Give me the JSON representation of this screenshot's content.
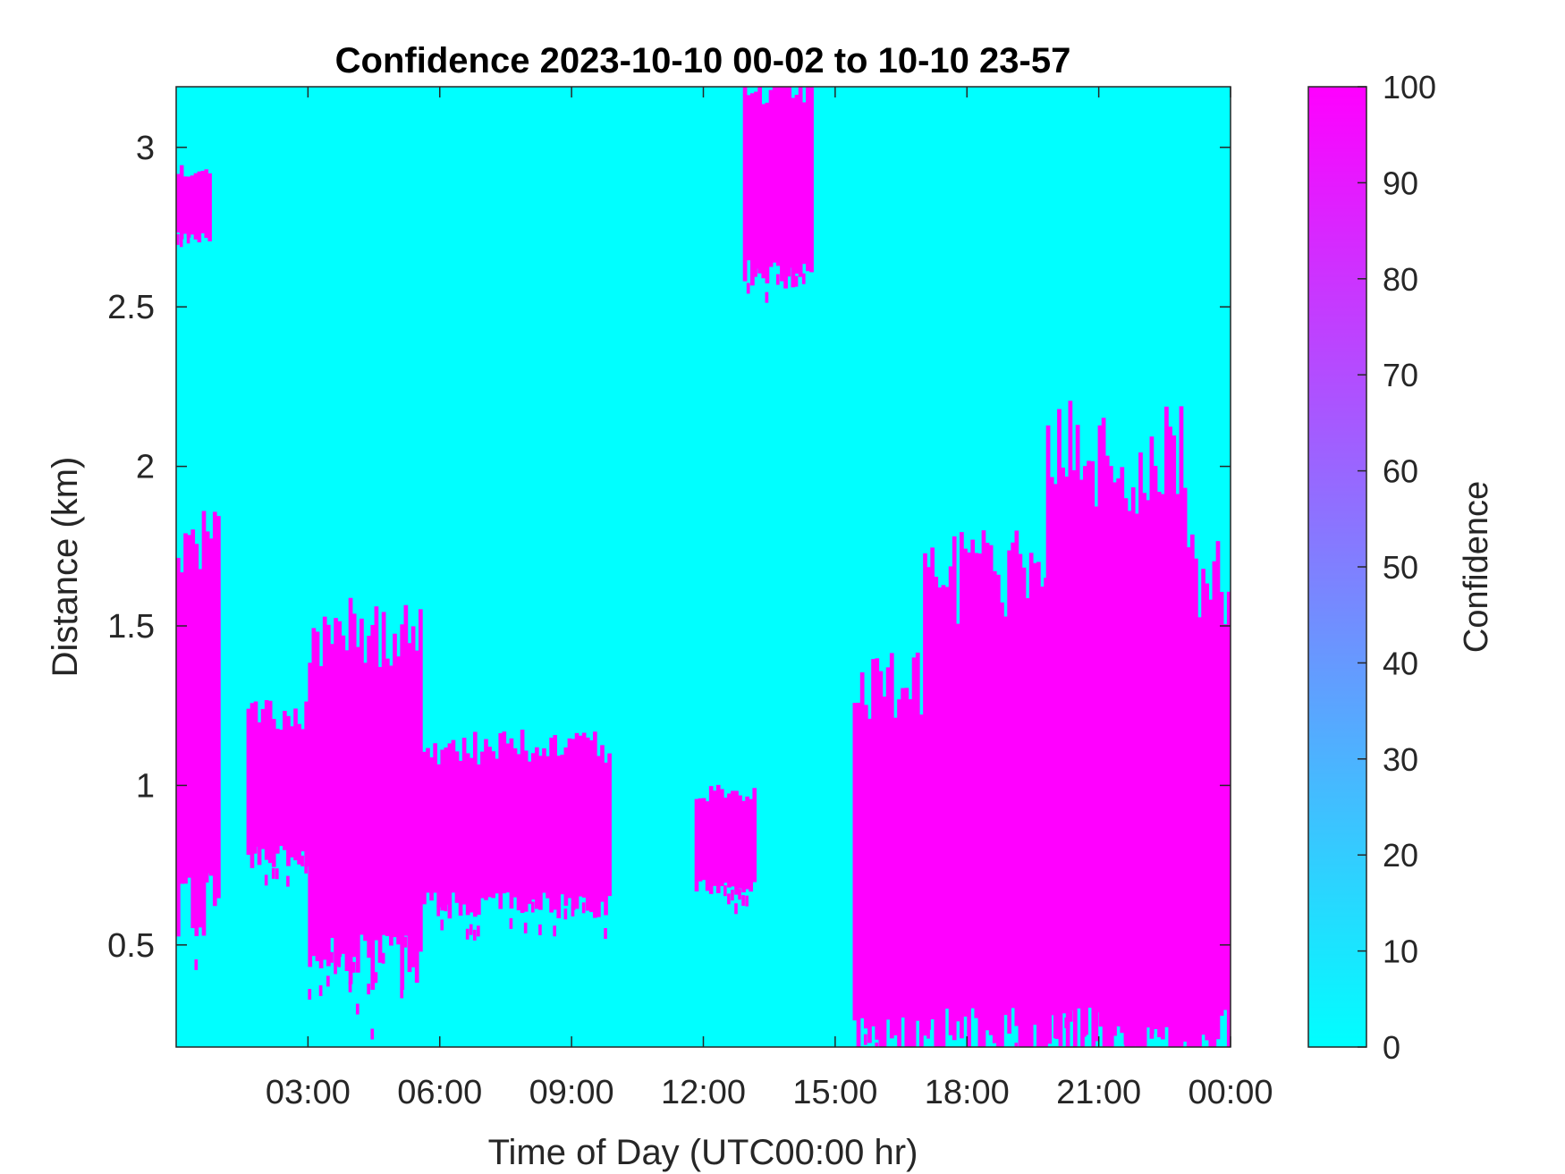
{
  "chart_data": {
    "type": "heatmap",
    "title": "Confidence 2023-10-10 00-02 to 10-10 23-57",
    "xlabel": "Time of Day (UTC00:00 hr)",
    "ylabel": "Distance (km)",
    "xlim_hours": [
      0.0,
      24.0
    ],
    "ylim": [
      0.18,
      3.19
    ],
    "x_ticks": [
      {
        "value": 3,
        "label": "03:00"
      },
      {
        "value": 6,
        "label": "06:00"
      },
      {
        "value": 9,
        "label": "09:00"
      },
      {
        "value": 12,
        "label": "12:00"
      },
      {
        "value": 15,
        "label": "15:00"
      },
      {
        "value": 18,
        "label": "18:00"
      },
      {
        "value": 21,
        "label": "21:00"
      },
      {
        "value": 24,
        "label": "00:00"
      }
    ],
    "y_ticks": [
      {
        "value": 0.5,
        "label": "0.5"
      },
      {
        "value": 1.0,
        "label": "1"
      },
      {
        "value": 1.5,
        "label": "1.5"
      },
      {
        "value": 2.0,
        "label": "2"
      },
      {
        "value": 2.5,
        "label": "2.5"
      },
      {
        "value": 3.0,
        "label": "3"
      }
    ],
    "colorbar": {
      "label": "Confidence",
      "range": [
        0,
        100
      ],
      "ticks": [
        {
          "value": 0,
          "label": "0"
        },
        {
          "value": 10,
          "label": "10"
        },
        {
          "value": 20,
          "label": "20"
        },
        {
          "value": 30,
          "label": "30"
        },
        {
          "value": 40,
          "label": "40"
        },
        {
          "value": 50,
          "label": "50"
        },
        {
          "value": 60,
          "label": "60"
        },
        {
          "value": 70,
          "label": "70"
        },
        {
          "value": 80,
          "label": "80"
        },
        {
          "value": 90,
          "label": "90"
        },
        {
          "value": 100,
          "label": "100"
        }
      ],
      "colors": [
        "#00ffff",
        "#ff00ff"
      ]
    },
    "high_confidence_regions": [
      {
        "t_start": 0.0,
        "t_end": 1.0,
        "d_low": 0.63,
        "d_high": 1.78
      },
      {
        "t_start": 0.0,
        "t_end": 0.8,
        "d_low": 2.72,
        "d_high": 2.93
      },
      {
        "t_start": 1.6,
        "t_end": 3.0,
        "d_low": 0.78,
        "d_high": 1.22
      },
      {
        "t_start": 3.0,
        "t_end": 5.6,
        "d_low": 0.45,
        "d_high": 1.48
      },
      {
        "t_start": 5.6,
        "t_end": 9.9,
        "d_low": 0.62,
        "d_high": 1.12
      },
      {
        "t_start": 11.8,
        "t_end": 13.2,
        "d_low": 0.68,
        "d_high": 0.98
      },
      {
        "t_start": 12.9,
        "t_end": 14.5,
        "d_low": 2.6,
        "d_high": 3.19
      },
      {
        "t_start": 15.4,
        "t_end": 17.0,
        "d_low": 0.18,
        "d_high": 1.3
      },
      {
        "t_start": 17.0,
        "t_end": 24.0,
        "d_low": 0.18,
        "d_high": 1.65
      },
      {
        "t_start": 19.8,
        "t_end": 23.0,
        "d_low": 0.3,
        "d_high": 2.02
      }
    ]
  }
}
